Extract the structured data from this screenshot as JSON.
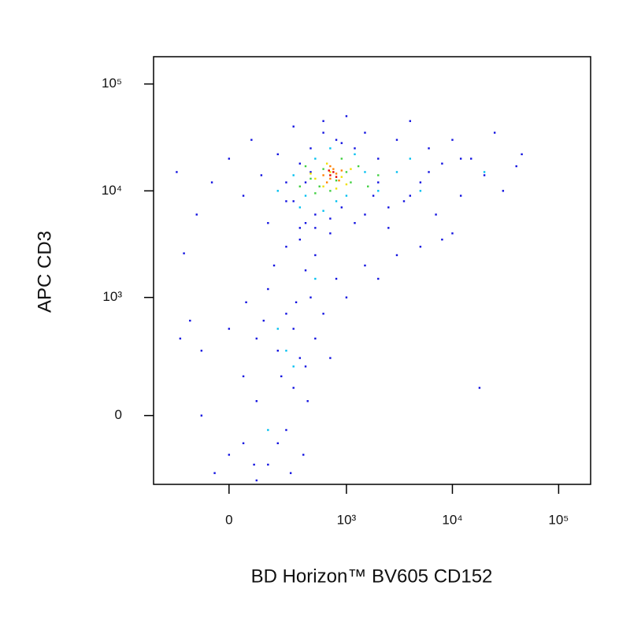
{
  "chart_data": {
    "type": "scatter",
    "xlabel": "BD Horizon™ BV605 CD152",
    "ylabel": "APC CD3",
    "xscale": "biexponential",
    "yscale": "biexponential",
    "xlim": [
      -390,
      200000
    ],
    "ylim": [
      -330,
      180000
    ],
    "xticks": [
      0,
      {
        "value": 1000,
        "label": "10³"
      },
      {
        "value": 10000,
        "label": "10⁴"
      },
      {
        "value": 100000,
        "label": "10⁵"
      }
    ],
    "yticks": [
      0,
      {
        "value": 1000,
        "label": "10³"
      },
      {
        "value": 10000,
        "label": "10⁴"
      },
      {
        "value": 100000,
        "label": "10⁵"
      }
    ],
    "series": [
      {
        "color": "#1010e0",
        "x": [
          -180,
          -220,
          -120,
          -60,
          0,
          50,
          80,
          120,
          150,
          200,
          250,
          300,
          350,
          400,
          450,
          500,
          600,
          700,
          800,
          900,
          1000,
          1200,
          1500,
          1800,
          2000,
          2500,
          3000,
          3500,
          4000,
          5000,
          6000,
          7000,
          8000,
          10000,
          12000,
          15000,
          20000,
          25000,
          30000,
          40000,
          45000,
          3000,
          5000,
          8000,
          10000,
          2000,
          1500,
          1000,
          800,
          600,
          500,
          400,
          300,
          250,
          200,
          150,
          100,
          50,
          0,
          -50,
          -100,
          -150,
          -200,
          100,
          200,
          300,
          350,
          250,
          150,
          100,
          50,
          0,
          -100,
          180,
          250,
          320,
          400,
          450,
          500,
          350,
          18000,
          700,
          280,
          220,
          130,
          60,
          90,
          380,
          420,
          300,
          400,
          500,
          700,
          1500,
          2500,
          350,
          250,
          1200,
          2000,
          4000,
          6000,
          12000,
          900,
          600,
          450
        ],
        "y": [
          2600,
          15000,
          6000,
          12000,
          20000,
          9000,
          30000,
          14000,
          5000,
          22000,
          8000,
          40000,
          3500,
          12000,
          25000,
          6000,
          45000,
          4000,
          30000,
          7000,
          50000,
          5000,
          35000,
          9000,
          20000,
          4500,
          30000,
          8000,
          45000,
          12000,
          25000,
          6000,
          18000,
          30000,
          9000,
          20000,
          14000,
          35000,
          10000,
          17000,
          22000,
          2500,
          3000,
          3500,
          4000,
          1500,
          2000,
          1000,
          1500,
          700,
          400,
          200,
          100,
          -50,
          -100,
          -200,
          50,
          150,
          -150,
          -250,
          300,
          600,
          400,
          -300,
          300,
          500,
          250,
          700,
          1200,
          400,
          -100,
          500,
          0,
          2000,
          3000,
          900,
          1800,
          1000,
          2500,
          4500,
          100,
          250,
          -250,
          150,
          600,
          900,
          -200,
          -150,
          50,
          8000,
          5000,
          4500,
          5500,
          6000,
          7000,
          18000,
          12000,
          25000,
          12000,
          9000,
          15000,
          20000,
          28000,
          35000,
          15000
        ]
      },
      {
        "color": "#00c0f0",
        "x": [
          200,
          300,
          400,
          500,
          700,
          1000,
          1500,
          2000,
          3000,
          4000,
          5000,
          350,
          600,
          800,
          1200,
          20000,
          250,
          300,
          200,
          150,
          500
        ],
        "y": [
          10000,
          14000,
          9000,
          20000,
          25000,
          9000,
          15000,
          10000,
          15000,
          20000,
          10000,
          7000,
          6500,
          8000,
          22000,
          15000,
          300,
          200,
          500,
          -50,
          1500
        ]
      },
      {
        "color": "#40d040",
        "x": [
          350,
          450,
          500,
          600,
          700,
          900,
          1100,
          1300,
          1600,
          2000,
          400,
          800,
          1000,
          550
        ],
        "y": [
          11000,
          13000,
          9500,
          16000,
          10000,
          20000,
          12000,
          17000,
          11000,
          14000,
          17000,
          12500,
          15000,
          11000
        ]
      },
      {
        "color": "#f0e000",
        "x": [
          500,
          600,
          700,
          800,
          900,
          1100,
          650,
          1000,
          450
        ],
        "y": [
          13000,
          11000,
          15000,
          10500,
          13500,
          16000,
          18000,
          11500,
          14500
        ]
      },
      {
        "color": "#ff8000",
        "x": [
          600,
          700,
          750,
          800,
          650,
          850,
          900,
          700
        ],
        "y": [
          14000,
          13000,
          16000,
          14500,
          12000,
          12500,
          15500,
          17000
        ]
      },
      {
        "color": "#e00000",
        "x": [
          700,
          750,
          800,
          680
        ],
        "y": [
          14000,
          15000,
          13500,
          15500
        ]
      }
    ]
  }
}
